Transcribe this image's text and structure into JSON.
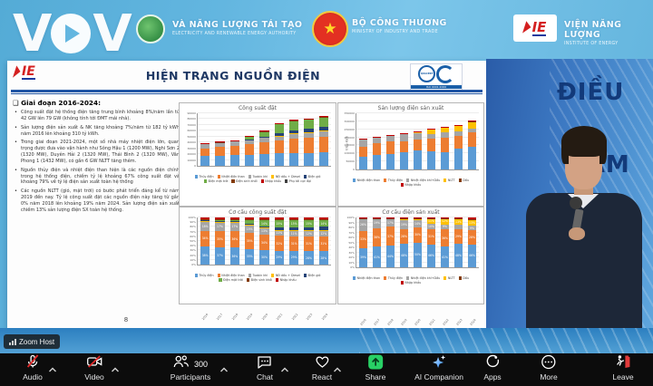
{
  "stage_header": {
    "watermark": {
      "left": "V",
      "right": "V",
      "shape": "play-circle"
    },
    "left_org": {
      "line1": "VÀ NĂNG LƯỢNG TÁI TẠO",
      "line2": "ELECTRICITY AND RENEWABLE ENERGY AUTHORITY"
    },
    "center_org": {
      "line1": "BỘ CÔNG THƯƠNG",
      "line2": "MINISTRY OF INDUSTRY AND TRADE"
    },
    "right_org": {
      "logo_text": "IE",
      "line1": "VIỆN NĂNG LƯỢNG",
      "line2": "INSTITUTE OF ENERGY"
    }
  },
  "backdrop_words": [
    "ĐIỀU",
    "TẦM"
  ],
  "slide": {
    "logo_text": "IE",
    "title": "HIỆN TRẠNG NGUỒN ĐIỆN",
    "cert": {
      "quacert": "QUACERT",
      "iso": "ISO 9001:2000"
    },
    "page_number": "8",
    "section_heading": "❑ Giai đoạn 2016-2024:",
    "bullets": [
      "Công suất đặt hệ thống điện tăng trung bình khoảng 8%/năm lần từ 42 GW lên 79 GW (không tính tới ĐMT mái nhà).",
      "Sản lượng điện sản xuất & NK tăng khoảng 7%/năm từ 182 tỷ kWh năm 2016 lên khoảng 310 tỷ kWh.",
      "Trong giai đoạn 2021-2024, một số nhà máy nhiệt điện lớn, quan trọng được đưa vào vận hành như Sông Hậu 1 (1200 MW), Nghi Sơn 2 (1320 MW), Duyên Hải 2 (1320 MW), Thái Bình 2 (1320 MW), Vân Phong 1 (1432 MW), có gần 6 GW NLTT tăng thêm.",
      "Nguồn thủy điện và nhiệt điện than hiện là các nguồn điện chính trong hệ thống điện, chiếm tỷ lệ khoảng 67% công suất đặt và khoảng 79% về tỷ lệ điện sản xuất toàn hệ thống",
      "Các nguồn NLTT (gió, mặt trời) có bước phát triển đáng kể từ năm 2019 đến nay. Tỷ lệ công suất đặt các nguồn điện này tăng từ gần 0% năm 2018 lên khoảng 19% năm 2024. Sản lượng điện sản xuất chiếm 13% sản lượng điện SX toàn hệ thống."
    ]
  },
  "chart_data": [
    {
      "id": "cong-suat-dat",
      "type": "bar",
      "stacked": true,
      "title": "Công suất đặt",
      "unit": "MW",
      "categories": [
        "2016",
        "2017",
        "2018",
        "2019",
        "2020",
        "2021",
        "2022",
        "2023",
        "2024"
      ],
      "ylim": [
        0,
        90000
      ],
      "ytick_step": 10000,
      "show_labels": false,
      "legend_position": "bottom",
      "series": [
        {
          "name": "Thủy điện",
          "color": "#5b9bd5",
          "values": [
            17000,
            17600,
            18100,
            18600,
            20700,
            21800,
            22400,
            22500,
            22900
          ]
        },
        {
          "name": "Nhiệt điện than",
          "color": "#ed7d31",
          "values": [
            13000,
            14600,
            16500,
            18000,
            19700,
            21300,
            24700,
            25300,
            26800
          ]
        },
        {
          "name": "Tuabin khí",
          "color": "#a5a5a5",
          "values": [
            7200,
            7200,
            7200,
            7200,
            7200,
            7300,
            7900,
            8900,
            8900
          ]
        },
        {
          "name": "NĐ dầu + Diesel",
          "color": "#ffc000",
          "values": [
            1200,
            1200,
            1200,
            1500,
            1500,
            1500,
            1200,
            1200,
            1200
          ]
        },
        {
          "name": "Điện gió",
          "color": "#264478",
          "values": [
            200,
            200,
            300,
            500,
            600,
            4000,
            4600,
            5000,
            6500
          ]
        },
        {
          "name": "Điện mặt trời",
          "color": "#70ad47",
          "values": [
            0,
            0,
            100,
            4700,
            8900,
            16500,
            16600,
            16700,
            17000
          ]
        },
        {
          "name": "Điện sinh khối",
          "color": "#843c0c",
          "values": [
            300,
            300,
            300,
            400,
            500,
            500,
            500,
            500,
            500
          ]
        },
        {
          "name": "Nhập khẩu",
          "color": "#c00000",
          "values": [
            500,
            500,
            600,
            700,
            800,
            900,
            1000,
            1200,
            1500
          ]
        },
        {
          "name": "Phụ tải cực đại",
          "color": "#404040",
          "values": [
            0,
            0,
            0,
            0,
            0,
            0,
            0,
            0,
            0
          ]
        }
      ]
    },
    {
      "id": "san-luong-dien",
      "type": "bar",
      "stacked": true,
      "title": "Sản lượng điện sản xuất",
      "unit": "triệu kWh",
      "ylabel": "triệu kWh",
      "categories": [
        "2016",
        "2017",
        "2018",
        "2019",
        "2020",
        "2021",
        "2022",
        "2023",
        "2024"
      ],
      "ylim": [
        0,
        350000
      ],
      "ytick_step": 50000,
      "show_labels": false,
      "legend_position": "bottom",
      "series": [
        {
          "name": "Nhiệt điện than",
          "color": "#5b9bd5",
          "values": [
            80000,
            90000,
            95000,
            110000,
            116000,
            113000,
            105000,
            130000,
            142000
          ]
        },
        {
          "name": "Thủy điện",
          "color": "#ed7d31",
          "values": [
            64000,
            75000,
            80000,
            66000,
            73000,
            79000,
            95000,
            80000,
            88000
          ]
        },
        {
          "name": "Nhiệt điện khí+Dầu",
          "color": "#a5a5a5",
          "values": [
            45000,
            38000,
            36000,
            44000,
            35000,
            30000,
            30000,
            27000,
            27000
          ]
        },
        {
          "name": "NLTT",
          "color": "#ffc000",
          "values": [
            400,
            500,
            1000,
            5400,
            10700,
            29000,
            34000,
            37000,
            41000
          ]
        },
        {
          "name": "Dầu",
          "color": "#843c0c",
          "values": [
            1000,
            1000,
            1000,
            1000,
            500,
            500,
            500,
            500,
            500
          ]
        },
        {
          "name": "Nhập khẩu",
          "color": "#c00000",
          "values": [
            1200,
            1500,
            1500,
            2100,
            3100,
            1400,
            3400,
            4200,
            5000
          ]
        }
      ]
    },
    {
      "id": "co-cau-cong-suat",
      "type": "bar",
      "stacked": true,
      "title": "Cơ cấu công suất đặt",
      "unit": "%",
      "categories": [
        "2016",
        "2017",
        "2018",
        "2019",
        "2020",
        "2021",
        "2022",
        "2023",
        "2024"
      ],
      "ylim": [
        0,
        100
      ],
      "ytick_step": 10,
      "show_labels": true,
      "legend_position": "bottom",
      "series": [
        {
          "name": "Thủy điện",
          "color": "#5b9bd5",
          "values": [
            38,
            37,
            36,
            33,
            30,
            29,
            29,
            28,
            28
          ]
        },
        {
          "name": "Nhiệt điện than",
          "color": "#ed7d31",
          "values": [
            34,
            35,
            36,
            35,
            34,
            32,
            31,
            31,
            31
          ]
        },
        {
          "name": "Tuabin khí",
          "color": "#a5a5a5",
          "values": [
            18,
            17,
            17,
            15,
            13,
            11,
            11,
            12,
            12
          ]
        },
        {
          "name": "NĐ dầu + Diesel",
          "color": "#ffc000",
          "values": [
            3,
            3,
            3,
            2,
            2,
            2,
            2,
            2,
            2
          ]
        },
        {
          "name": "Điện gió",
          "color": "#264478",
          "values": [
            1,
            1,
            1,
            1,
            1,
            5,
            6,
            6,
            7
          ]
        },
        {
          "name": "Điện mặt trời",
          "color": "#70ad47",
          "values": [
            0,
            1,
            1,
            8,
            14,
            15,
            15,
            15,
            14
          ]
        },
        {
          "name": "Điện sinh khối",
          "color": "#843c0c",
          "values": [
            2,
            2,
            2,
            2,
            2,
            2,
            2,
            2,
            2
          ]
        },
        {
          "name": "Nhập khẩu",
          "color": "#c00000",
          "values": [
            4,
            4,
            4,
            4,
            4,
            4,
            4,
            4,
            4
          ]
        }
      ]
    },
    {
      "id": "co-cau-dien-san-xuat",
      "type": "bar",
      "stacked": true,
      "title": "Cơ cấu điện sản xuất",
      "unit": "%",
      "categories": [
        "2016",
        "2017",
        "2018",
        "2019",
        "2020",
        "2021",
        "2022",
        "2023",
        "2024"
      ],
      "ylim": [
        0,
        100
      ],
      "ytick_step": 10,
      "show_labels": true,
      "legend_position": "bottom",
      "series": [
        {
          "name": "Nhiệt điện than",
          "color": "#5b9bd5",
          "values": [
            39,
            41,
            44,
            48,
            50,
            46,
            41,
            48,
            46
          ]
        },
        {
          "name": "Thủy điện",
          "color": "#ed7d31",
          "values": [
            33,
            38,
            37,
            28,
            30,
            31,
            36,
            29,
            28
          ]
        },
        {
          "name": "Nhiệt điện khí+Dầu",
          "color": "#a5a5a5",
          "values": [
            26,
            19,
            17,
            19,
            14,
            10,
            9,
            8,
            9
          ]
        },
        {
          "name": "NLTT",
          "color": "#ffc000",
          "values": [
            0,
            0,
            0,
            3,
            4,
            11,
            12,
            13,
            13
          ]
        },
        {
          "name": "Dầu",
          "color": "#843c0c",
          "values": [
            1,
            1,
            1,
            1,
            1,
            1,
            1,
            1,
            1
          ]
        },
        {
          "name": "Nhập khẩu",
          "color": "#c00000",
          "values": [
            1,
            1,
            1,
            1,
            1,
            1,
            1,
            1,
            3
          ]
        }
      ]
    }
  ],
  "meeting": {
    "connection_badge": {
      "label": "Zoom Host"
    },
    "toolbar": {
      "background": "#0c0c0c",
      "share_accent": "#28d065",
      "leave_accent": "#e23b3b",
      "items": [
        {
          "id": "audio",
          "label": "Audio",
          "icon": "mic-muted-icon",
          "muted": true,
          "has_caret": true
        },
        {
          "id": "video",
          "label": "Video",
          "icon": "camera-muted-icon",
          "muted": true,
          "has_caret": true
        },
        {
          "id": "participants",
          "label": "Participants",
          "icon": "participants-icon",
          "count": "300",
          "has_caret": true
        },
        {
          "id": "chat",
          "label": "Chat",
          "icon": "chat-bubble-icon",
          "has_caret": true
        },
        {
          "id": "react",
          "label": "React",
          "icon": "heart-icon",
          "has_caret": true
        },
        {
          "id": "share",
          "label": "Share",
          "icon": "share-screen-icon"
        },
        {
          "id": "ai-companion",
          "label": "AI Companion",
          "icon": "ai-sparkle-icon"
        },
        {
          "id": "apps",
          "label": "Apps",
          "icon": "apps-icon"
        },
        {
          "id": "more",
          "label": "More",
          "icon": "more-ellipsis-icon"
        },
        {
          "id": "leave",
          "label": "Leave",
          "icon": "leave-door-icon"
        }
      ]
    }
  }
}
